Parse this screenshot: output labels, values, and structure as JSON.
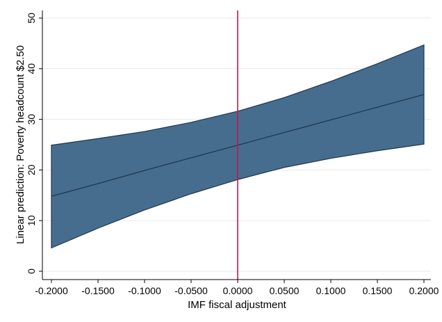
{
  "chart_data": {
    "type": "area",
    "xlabel": "IMF fiscal adjustment",
    "ylabel": "Linear prediction: Poverty headcount $2.50",
    "xlim": [
      -0.2,
      0.2
    ],
    "ylim": [
      0,
      50
    ],
    "x_ticks": [
      -0.2,
      -0.15,
      -0.1,
      -0.05,
      0,
      0.05,
      0.1,
      0.15,
      0.2
    ],
    "x_tick_labels": [
      "-0.2000",
      "-0.1500",
      "-0.1000",
      "-0.0500",
      "0.0000",
      "0.0500",
      "0.1000",
      "0.1500",
      "0.2000"
    ],
    "y_ticks": [
      0,
      10,
      20,
      30,
      40,
      50
    ],
    "y_tick_labels": [
      "0",
      "10",
      "20",
      "30",
      "40",
      "50"
    ],
    "grid": "horizontal",
    "x": [
      -0.2,
      -0.15,
      -0.1,
      -0.05,
      0,
      0.05,
      0.1,
      0.15,
      0.2
    ],
    "series": [
      {
        "role": "prediction",
        "values": [
          14.8,
          17.3,
          19.9,
          22.4,
          24.9,
          27.4,
          29.9,
          32.4,
          34.9
        ]
      },
      {
        "role": "ci_upper",
        "values": [
          24.9,
          26.2,
          27.6,
          29.4,
          31.6,
          34.3,
          37.5,
          41.0,
          44.7
        ]
      },
      {
        "role": "ci_lower",
        "values": [
          4.6,
          8.5,
          12.1,
          15.3,
          18.1,
          20.5,
          22.3,
          23.8,
          25.1
        ]
      }
    ],
    "reference_line_x": 0,
    "colors": {
      "band_fill": "#476d8e",
      "band_edge": "#1c3750",
      "prediction_line": "#1c3750",
      "reference_line": "#c3144b",
      "grid": "#e8eaee",
      "axis": "#000000"
    }
  }
}
